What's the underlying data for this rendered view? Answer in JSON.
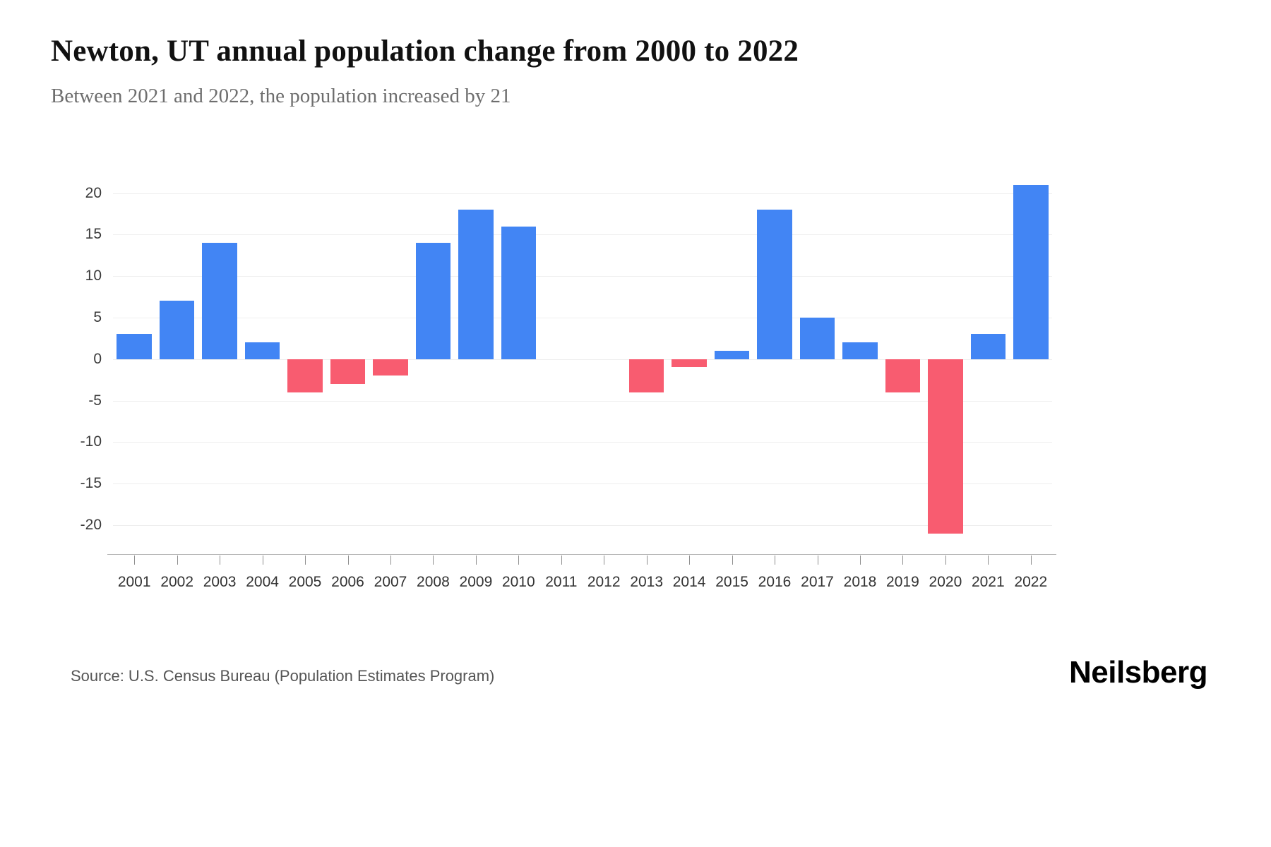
{
  "header": {
    "title": "Newton, UT annual population change from 2000 to 2022",
    "subtitle": "Between 2021 and 2022, the population increased by 21"
  },
  "footer": {
    "source": "Source: U.S. Census Bureau (Population Estimates Program)",
    "brand": "Neilsberg"
  },
  "chart_data": {
    "type": "bar",
    "title": "Newton, UT annual population change from 2000 to 2022",
    "subtitle": "Between 2021 and 2022, the population increased by 21",
    "categories": [
      "2001",
      "2002",
      "2003",
      "2004",
      "2005",
      "2006",
      "2007",
      "2008",
      "2009",
      "2010",
      "2011",
      "2012",
      "2013",
      "2014",
      "2015",
      "2016",
      "2017",
      "2018",
      "2019",
      "2020",
      "2021",
      "2022"
    ],
    "values": [
      3,
      7,
      14,
      2,
      -4,
      -3,
      -2,
      14,
      18,
      16,
      0,
      0,
      -4,
      -1,
      1,
      18,
      5,
      2,
      -4,
      -21,
      3,
      21
    ],
    "xlabel": "",
    "ylabel": "",
    "ylim": [
      -23.5,
      22
    ],
    "yticks": [
      20,
      15,
      10,
      5,
      0,
      -5,
      -10,
      -15,
      -20
    ],
    "grid": true,
    "legend": false,
    "colors": {
      "positive": "#4285F4",
      "negative": "#F85C70"
    }
  }
}
